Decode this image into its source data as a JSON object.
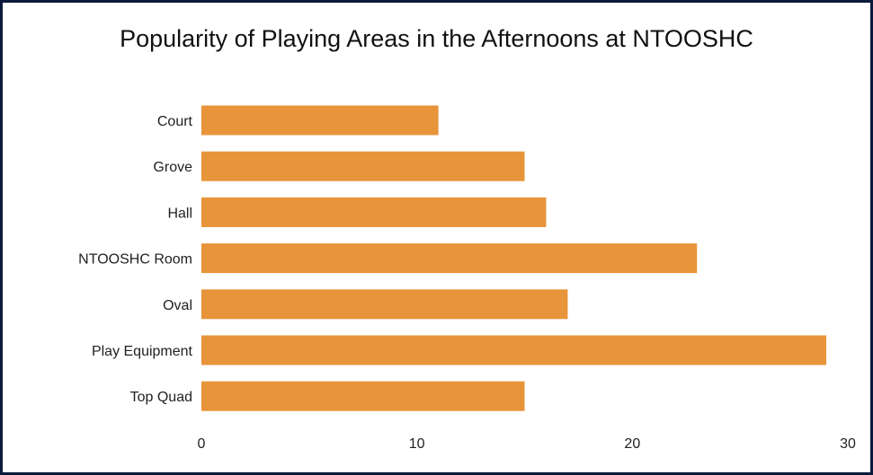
{
  "chart_data": {
    "type": "bar",
    "orientation": "horizontal",
    "title": "Popularity of Playing Areas in the Afternoons at NTOOSHC",
    "categories": [
      "Court",
      "Grove",
      "Hall",
      "NTOOSHC Room",
      "Oval",
      "Play Equipment",
      "Top Quad"
    ],
    "values": [
      11,
      15,
      16,
      23,
      17,
      29,
      15
    ],
    "xlim": [
      0,
      30
    ],
    "x_ticks": [
      "0",
      "10",
      "20",
      "30"
    ],
    "xlabel": "",
    "ylabel": "",
    "grid": false,
    "legend": "none",
    "bar_color": "#e8943a"
  }
}
